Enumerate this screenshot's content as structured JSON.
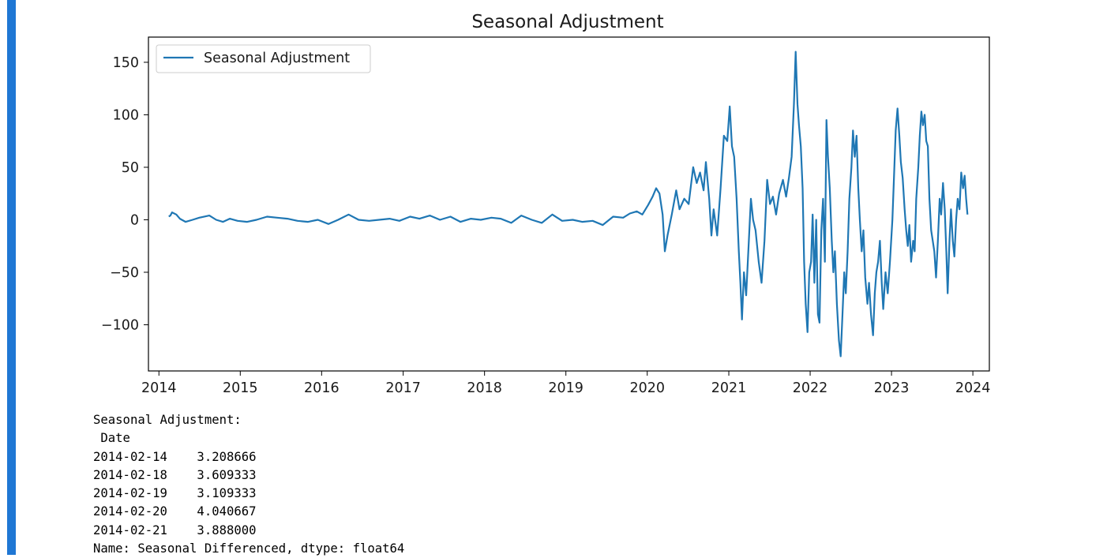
{
  "chart_data": {
    "type": "line",
    "title": "Seasonal Adjustment",
    "xlabel": "",
    "ylabel": "",
    "x_axis_type": "date",
    "xlim": [
      "2013-11-15",
      "2024-03-15"
    ],
    "ylim": [
      -144,
      174
    ],
    "xticks": [
      "2014",
      "2015",
      "2016",
      "2017",
      "2018",
      "2019",
      "2020",
      "2021",
      "2022",
      "2023",
      "2024"
    ],
    "yticks": [
      150,
      100,
      50,
      0,
      -50,
      -100
    ],
    "ytick_labels": [
      "150",
      "100",
      "50",
      "0",
      "−50",
      "−100"
    ],
    "grid": false,
    "legend": {
      "position": "top-left",
      "entries": [
        "Seasonal Adjustment"
      ]
    },
    "series": [
      {
        "name": "Seasonal Adjustment",
        "color": "#1f77b4",
        "points": [
          [
            "2014-02-14",
            3.2
          ],
          [
            "2014-02-21",
            3.9
          ],
          [
            "2014-03-01",
            7
          ],
          [
            "2014-03-20",
            5
          ],
          [
            "2014-04-05",
            1
          ],
          [
            "2014-05-01",
            -2
          ],
          [
            "2014-06-01",
            0
          ],
          [
            "2014-07-01",
            2
          ],
          [
            "2014-08-15",
            4
          ],
          [
            "2014-09-15",
            0
          ],
          [
            "2014-10-15",
            -2
          ],
          [
            "2014-11-15",
            1
          ],
          [
            "2014-12-20",
            -1
          ],
          [
            "2015-02-01",
            -2
          ],
          [
            "2015-03-15",
            0
          ],
          [
            "2015-05-01",
            3
          ],
          [
            "2015-06-15",
            2
          ],
          [
            "2015-08-01",
            1
          ],
          [
            "2015-09-15",
            -1
          ],
          [
            "2015-11-01",
            -2
          ],
          [
            "2015-12-15",
            0
          ],
          [
            "2016-02-01",
            -4
          ],
          [
            "2016-03-15",
            0
          ],
          [
            "2016-05-01",
            5
          ],
          [
            "2016-06-15",
            0
          ],
          [
            "2016-08-01",
            -1
          ],
          [
            "2016-09-15",
            0
          ],
          [
            "2016-11-01",
            1
          ],
          [
            "2016-12-15",
            -1
          ],
          [
            "2017-02-01",
            3
          ],
          [
            "2017-03-15",
            1
          ],
          [
            "2017-05-01",
            4
          ],
          [
            "2017-06-15",
            0
          ],
          [
            "2017-08-01",
            3
          ],
          [
            "2017-09-15",
            -2
          ],
          [
            "2017-11-01",
            1
          ],
          [
            "2017-12-15",
            0
          ],
          [
            "2018-02-01",
            2
          ],
          [
            "2018-03-15",
            1
          ],
          [
            "2018-05-01",
            -3
          ],
          [
            "2018-06-15",
            4
          ],
          [
            "2018-08-01",
            0
          ],
          [
            "2018-09-15",
            -3
          ],
          [
            "2018-11-01",
            5
          ],
          [
            "2018-12-15",
            -1
          ],
          [
            "2019-02-01",
            0
          ],
          [
            "2019-03-15",
            -2
          ],
          [
            "2019-05-01",
            -1
          ],
          [
            "2019-06-15",
            -5
          ],
          [
            "2019-08-01",
            3
          ],
          [
            "2019-09-15",
            2
          ],
          [
            "2019-10-15",
            6
          ],
          [
            "2019-11-15",
            8
          ],
          [
            "2019-12-10",
            5
          ],
          [
            "2020-01-05",
            14
          ],
          [
            "2020-01-25",
            22
          ],
          [
            "2020-02-10",
            30
          ],
          [
            "2020-02-25",
            25
          ],
          [
            "2020-03-10",
            5
          ],
          [
            "2020-03-20",
            -30
          ],
          [
            "2020-04-01",
            -15
          ],
          [
            "2020-04-20",
            5
          ],
          [
            "2020-05-10",
            28
          ],
          [
            "2020-05-25",
            10
          ],
          [
            "2020-06-15",
            20
          ],
          [
            "2020-07-05",
            15
          ],
          [
            "2020-07-25",
            50
          ],
          [
            "2020-08-10",
            35
          ],
          [
            "2020-08-25",
            45
          ],
          [
            "2020-09-10",
            28
          ],
          [
            "2020-09-20",
            55
          ],
          [
            "2020-10-05",
            20
          ],
          [
            "2020-10-15",
            -15
          ],
          [
            "2020-10-25",
            10
          ],
          [
            "2020-11-10",
            -15
          ],
          [
            "2020-11-25",
            30
          ],
          [
            "2020-12-10",
            80
          ],
          [
            "2020-12-25",
            75
          ],
          [
            "2021-01-05",
            108
          ],
          [
            "2021-01-15",
            70
          ],
          [
            "2021-01-25",
            60
          ],
          [
            "2021-02-05",
            20
          ],
          [
            "2021-02-15",
            -30
          ],
          [
            "2021-02-22",
            -60
          ],
          [
            "2021-03-01",
            -95
          ],
          [
            "2021-03-10",
            -50
          ],
          [
            "2021-03-20",
            -72
          ],
          [
            "2021-04-01",
            -20
          ],
          [
            "2021-04-10",
            20
          ],
          [
            "2021-04-20",
            0
          ],
          [
            "2021-05-01",
            -10
          ],
          [
            "2021-05-15",
            -40
          ],
          [
            "2021-05-28",
            -60
          ],
          [
            "2021-06-10",
            -20
          ],
          [
            "2021-06-22",
            38
          ],
          [
            "2021-07-05",
            15
          ],
          [
            "2021-07-18",
            22
          ],
          [
            "2021-08-01",
            5
          ],
          [
            "2021-08-15",
            25
          ],
          [
            "2021-09-01",
            38
          ],
          [
            "2021-09-15",
            22
          ],
          [
            "2021-09-28",
            40
          ],
          [
            "2021-10-10",
            60
          ],
          [
            "2021-10-20",
            110
          ],
          [
            "2021-10-28",
            160
          ],
          [
            "2021-11-05",
            110
          ],
          [
            "2021-11-12",
            90
          ],
          [
            "2021-11-20",
            70
          ],
          [
            "2021-11-28",
            30
          ],
          [
            "2021-12-05",
            -40
          ],
          [
            "2021-12-12",
            -80
          ],
          [
            "2021-12-20",
            -107
          ],
          [
            "2021-12-28",
            -50
          ],
          [
            "2022-01-05",
            -40
          ],
          [
            "2022-01-12",
            5
          ],
          [
            "2022-01-20",
            -60
          ],
          [
            "2022-01-28",
            0
          ],
          [
            "2022-02-05",
            -90
          ],
          [
            "2022-02-12",
            -98
          ],
          [
            "2022-02-20",
            -10
          ],
          [
            "2022-02-28",
            20
          ],
          [
            "2022-03-08",
            -40
          ],
          [
            "2022-03-15",
            95
          ],
          [
            "2022-03-22",
            60
          ],
          [
            "2022-03-30",
            30
          ],
          [
            "2022-04-08",
            -20
          ],
          [
            "2022-04-15",
            -50
          ],
          [
            "2022-04-22",
            -30
          ],
          [
            "2022-05-01",
            -80
          ],
          [
            "2022-05-10",
            -115
          ],
          [
            "2022-05-18",
            -130
          ],
          [
            "2022-05-26",
            -90
          ],
          [
            "2022-06-03",
            -50
          ],
          [
            "2022-06-10",
            -70
          ],
          [
            "2022-06-18",
            -30
          ],
          [
            "2022-06-26",
            20
          ],
          [
            "2022-07-05",
            50
          ],
          [
            "2022-07-12",
            85
          ],
          [
            "2022-07-20",
            60
          ],
          [
            "2022-07-28",
            80
          ],
          [
            "2022-08-05",
            30
          ],
          [
            "2022-08-12",
            0
          ],
          [
            "2022-08-20",
            -30
          ],
          [
            "2022-08-28",
            -10
          ],
          [
            "2022-09-05",
            -55
          ],
          [
            "2022-09-15",
            -80
          ],
          [
            "2022-09-22",
            -60
          ],
          [
            "2022-10-01",
            -90
          ],
          [
            "2022-10-10",
            -110
          ],
          [
            "2022-10-18",
            -70
          ],
          [
            "2022-10-25",
            -50
          ],
          [
            "2022-11-02",
            -40
          ],
          [
            "2022-11-10",
            -20
          ],
          [
            "2022-11-18",
            -60
          ],
          [
            "2022-11-25",
            -85
          ],
          [
            "2022-12-05",
            -50
          ],
          [
            "2022-12-15",
            -70
          ],
          [
            "2022-12-25",
            -40
          ],
          [
            "2023-01-05",
            0
          ],
          [
            "2023-01-12",
            40
          ],
          [
            "2023-01-20",
            85
          ],
          [
            "2023-01-28",
            106
          ],
          [
            "2023-02-05",
            80
          ],
          [
            "2023-02-12",
            55
          ],
          [
            "2023-02-20",
            40
          ],
          [
            "2023-03-01",
            10
          ],
          [
            "2023-03-08",
            -10
          ],
          [
            "2023-03-15",
            -25
          ],
          [
            "2023-03-22",
            -5
          ],
          [
            "2023-03-30",
            -40
          ],
          [
            "2023-04-08",
            -20
          ],
          [
            "2023-04-15",
            -30
          ],
          [
            "2023-04-22",
            20
          ],
          [
            "2023-05-01",
            50
          ],
          [
            "2023-05-08",
            80
          ],
          [
            "2023-05-15",
            103
          ],
          [
            "2023-05-22",
            90
          ],
          [
            "2023-05-30",
            100
          ],
          [
            "2023-06-06",
            75
          ],
          [
            "2023-06-13",
            70
          ],
          [
            "2023-06-20",
            20
          ],
          [
            "2023-06-28",
            -10
          ],
          [
            "2023-07-05",
            -20
          ],
          [
            "2023-07-12",
            -30
          ],
          [
            "2023-07-20",
            -55
          ],
          [
            "2023-07-28",
            -20
          ],
          [
            "2023-08-05",
            20
          ],
          [
            "2023-08-12",
            5
          ],
          [
            "2023-08-20",
            35
          ],
          [
            "2023-08-28",
            10
          ],
          [
            "2023-09-04",
            -30
          ],
          [
            "2023-09-10",
            -70
          ],
          [
            "2023-09-18",
            -20
          ],
          [
            "2023-09-25",
            10
          ],
          [
            "2023-10-03",
            -20
          ],
          [
            "2023-10-10",
            -35
          ],
          [
            "2023-10-18",
            0
          ],
          [
            "2023-10-25",
            20
          ],
          [
            "2023-11-02",
            10
          ],
          [
            "2023-11-10",
            45
          ],
          [
            "2023-11-18",
            30
          ],
          [
            "2023-11-25",
            42
          ],
          [
            "2023-12-02",
            20
          ],
          [
            "2023-12-08",
            5
          ]
        ]
      }
    ]
  },
  "output": {
    "header": "Seasonal Adjustment:",
    "index_name": " Date",
    "rows": [
      "2014-02-14    3.208666",
      "2014-02-18    3.609333",
      "2014-02-19    3.109333",
      "2014-02-20    4.040667",
      "2014-02-21    3.888000"
    ],
    "footer": "Name: Seasonal Differenced, dtype: float64"
  }
}
